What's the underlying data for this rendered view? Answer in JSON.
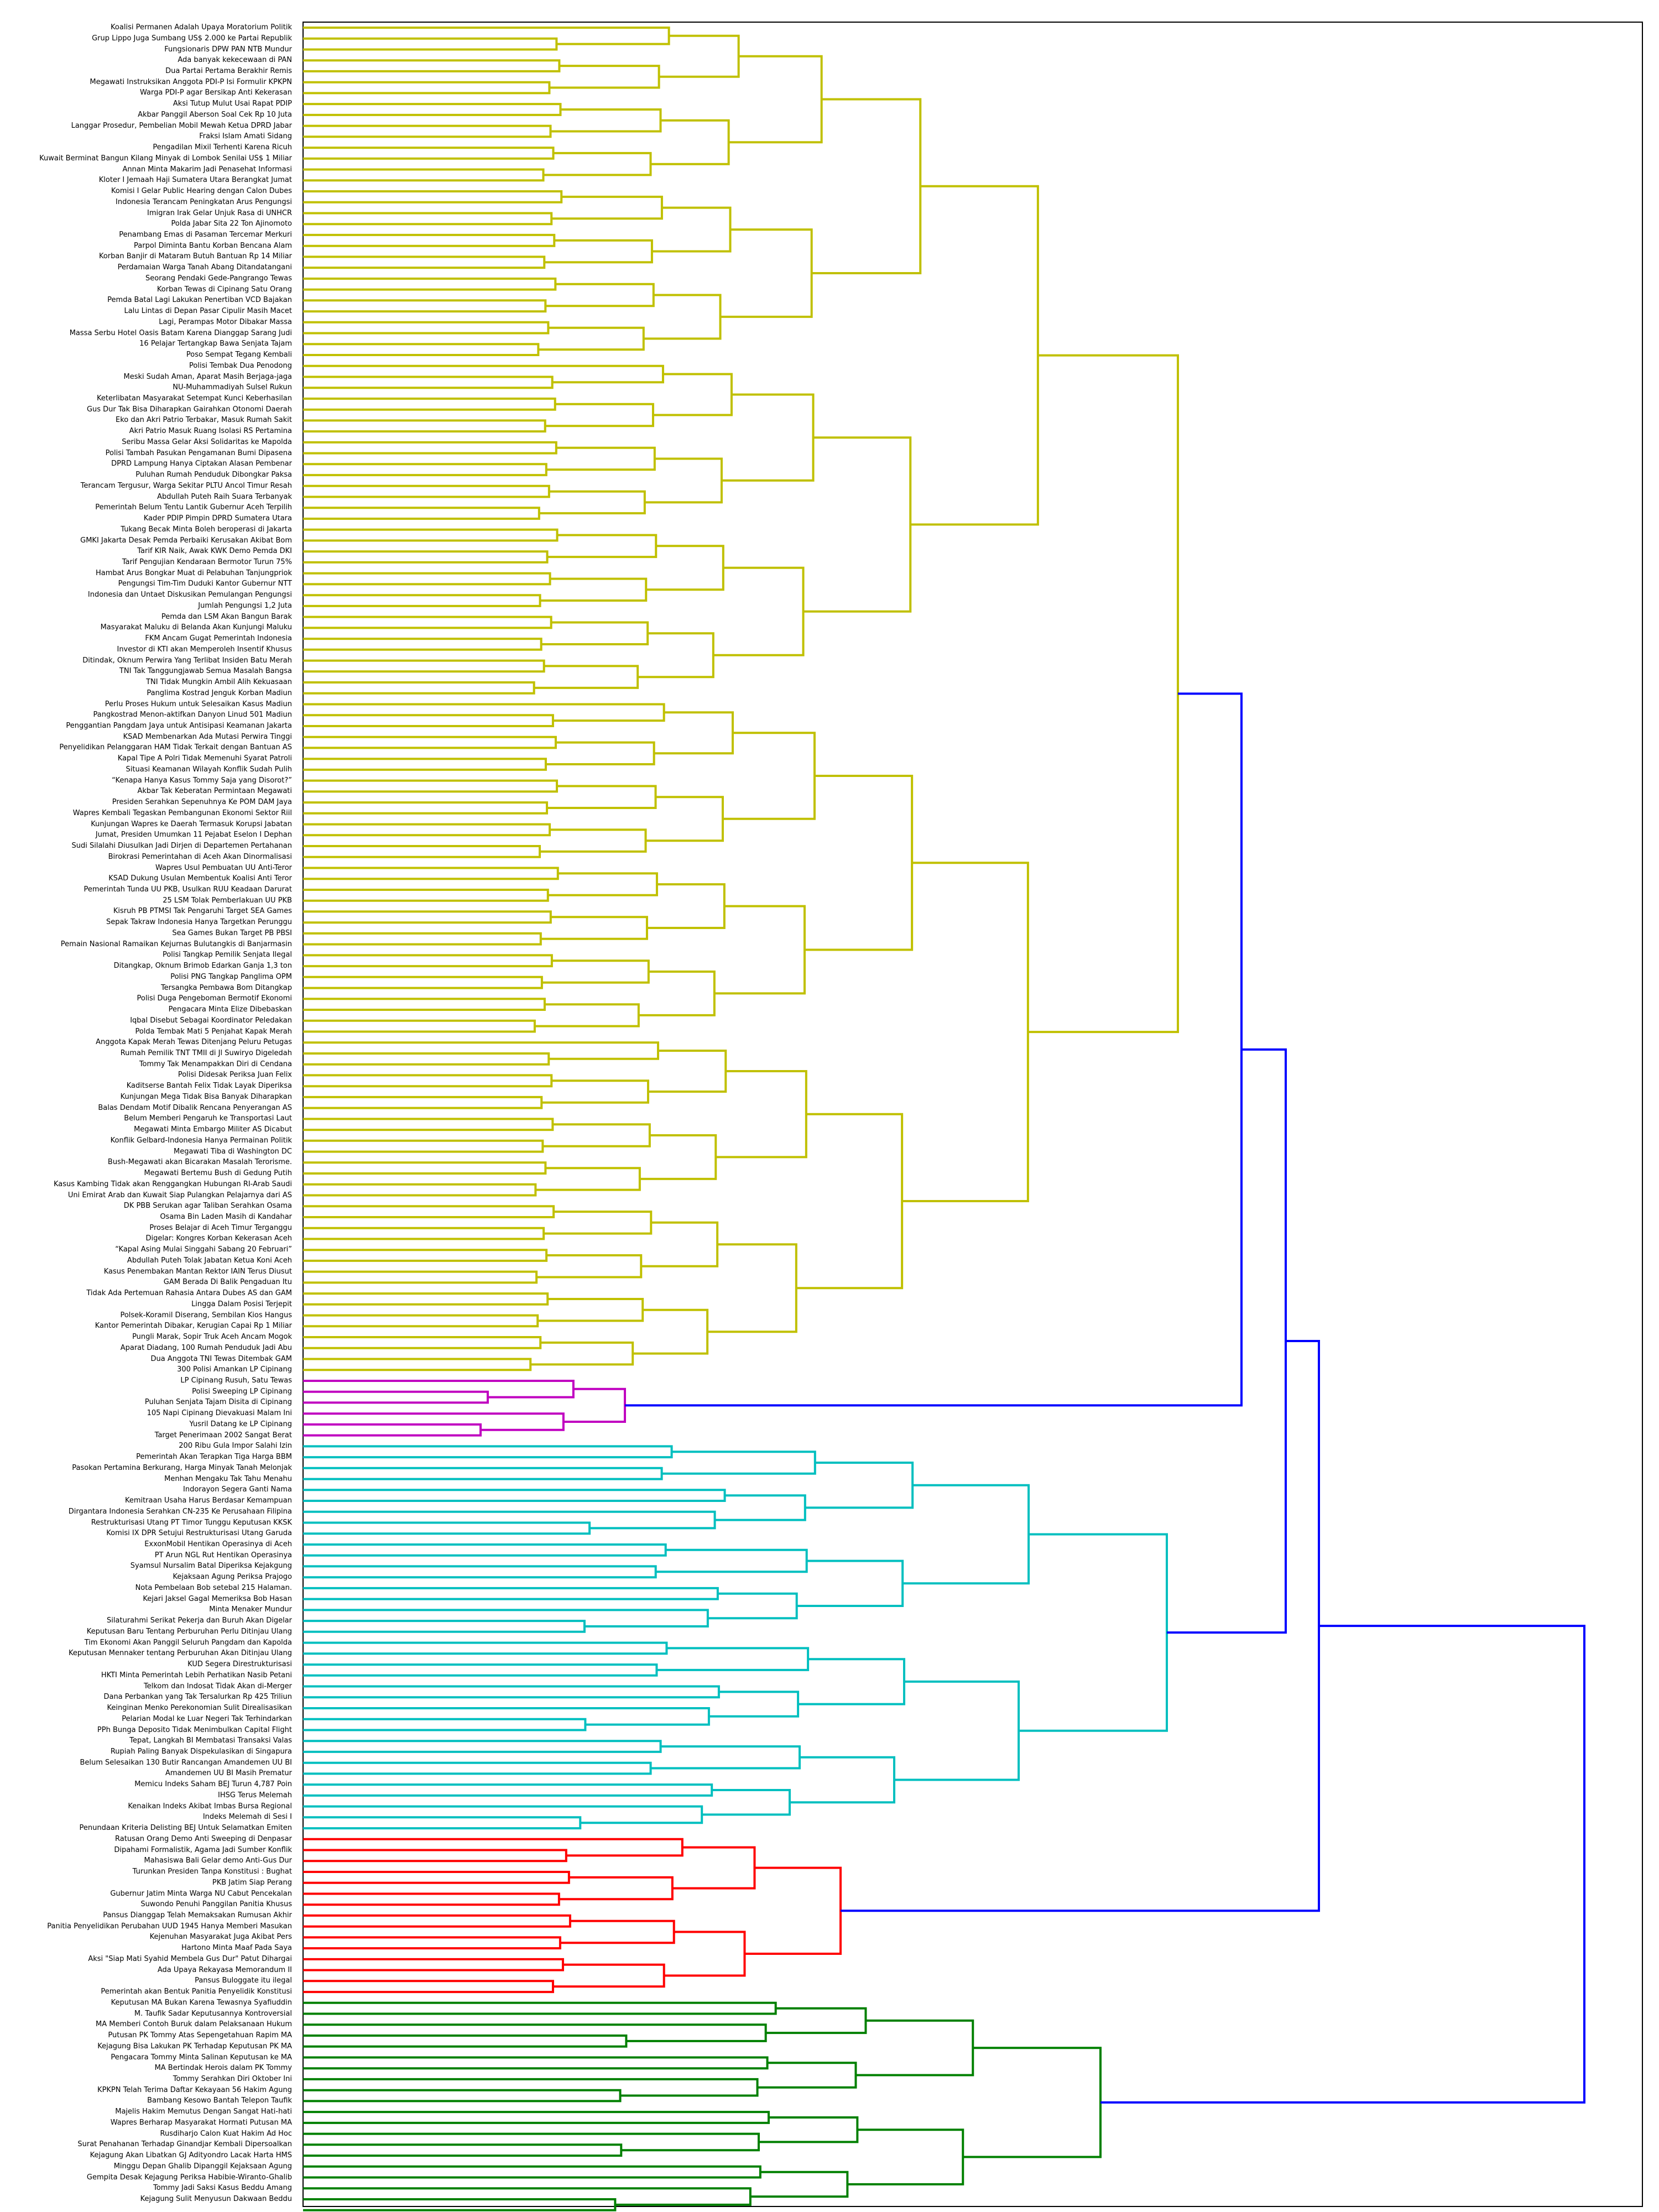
{
  "colors": {
    "olive": "#c0c000",
    "magenta": "#c000c0",
    "cyan": "#00bfbf",
    "red": "#ff0000",
    "green": "#008000",
    "blue": "#0000ff"
  },
  "leaves": [
    "Koalisi Permanen Adalah Upaya Moratorium Politik",
    "Grup Lippo Juga Sumbang US$ 2.000 ke Partai Republik",
    "Fungsionaris DPW PAN NTB Mundur",
    "Ada banyak kekecewaan di PAN",
    "Dua Partai Pertama Berakhir Remis",
    "Megawati Instruksikan Anggota PDI-P Isi Formulir KPKPN",
    "Warga PDI-P agar Bersikap Anti Kekerasan",
    "Aksi Tutup Mulut Usai Rapat PDIP",
    "Akbar Panggil Aberson Soal Cek Rp 10 Juta",
    "Langgar Prosedur, Pembelian Mobil Mewah Ketua DPRD Jabar",
    "Fraksi Islam Amati Sidang",
    "Pengadilan Mixil Terhenti Karena Ricuh",
    "Kuwait Berminat Bangun Kilang Minyak di Lombok Senilai US$ 1 Miliar",
    "Annan Minta Makarim Jadi Penasehat Informasi",
    "Kloter I Jemaah Haji Sumatera Utara Berangkat Jumat",
    "Komisi I Gelar Public Hearing dengan Calon Dubes",
    "Indonesia Terancam Peningkatan Arus Pengungsi",
    "Imigran Irak Gelar Unjuk Rasa di UNHCR",
    "Polda Jabar Sita 22 Ton Ajinomoto",
    "Penambang Emas di Pasaman Tercemar Merkuri",
    "Parpol Diminta Bantu Korban Bencana Alam",
    "Korban Banjir di Mataram Butuh Bantuan Rp 14 Miliar",
    "Perdamaian Warga Tanah Abang Ditandatangani",
    "Seorang Pendaki Gede-Pangrango Tewas",
    "Korban Tewas di Cipinang Satu Orang",
    "Pemda Batal Lagi Lakukan Penertiban VCD Bajakan",
    "Lalu Lintas di Depan Pasar Cipulir Masih Macet",
    "Lagi, Perampas Motor Dibakar Massa",
    "Massa Serbu Hotel Oasis Batam Karena Dianggap Sarang Judi",
    "16 Pelajar Tertangkap Bawa Senjata Tajam",
    "Poso Sempat Tegang Kembali",
    "Polisi Tembak Dua Penodong",
    "Meski Sudah Aman, Aparat Masih Berjaga-jaga",
    "NU-Muhammadiyah Sulsel Rukun",
    "Keterlibatan Masyarakat Setempat Kunci Keberhasilan",
    "Gus Dur Tak Bisa Diharapkan Gairahkan Otonomi Daerah",
    "Eko dan Akri Patrio Terbakar, Masuk Rumah Sakit",
    "Akri Patrio Masuk Ruang Isolasi RS Pertamina",
    "Seribu Massa Gelar Aksi Solidaritas ke Mapolda",
    "Polisi Tambah Pasukan Pengamanan Bumi Dipasena",
    "DPRD Lampung Hanya Ciptakan Alasan Pembenar",
    "Puluhan Rumah Penduduk Dibongkar Paksa",
    "Terancam Tergusur, Warga Sekitar PLTU Ancol Timur Resah",
    "Abdullah Puteh Raih Suara Terbanyak",
    "Pemerintah Belum Tentu Lantik Gubernur Aceh Terpilih",
    "Kader PDIP Pimpin DPRD Sumatera Utara",
    "Tukang Becak Minta Boleh beroperasi di Jakarta",
    "GMKI Jakarta Desak Pemda Perbaiki Kerusakan Akibat Bom",
    "Tarif KIR Naik, Awak KWK Demo Pemda DKI",
    "Tarif Pengujian Kendaraan Bermotor Turun 75%",
    "Hambat Arus Bongkar Muat di Pelabuhan Tanjungpriok",
    "Pengungsi Tim-Tim Duduki Kantor Gubernur NTT",
    "Indonesia dan Untaet Diskusikan Pemulangan Pengungsi",
    "Jumlah Pengungsi 1,2 Juta",
    "Pemda dan LSM Akan Bangun Barak",
    "Masyarakat Maluku di Belanda Akan Kunjungi Maluku",
    "FKM Ancam Gugat Pemerintah Indonesia",
    "Investor di KTI akan Memperoleh Insentif Khusus",
    "Ditindak, Oknum Perwira Yang Terlibat Insiden Batu Merah",
    "TNI Tak Tanggungjawab Semua Masalah Bangsa",
    "TNI Tidak Mungkin Ambil Alih Kekuasaan",
    "Panglima Kostrad Jenguk Korban Madiun",
    "Perlu Proses Hukum untuk Selesaikan Kasus Madiun",
    "Pangkostrad Menon-aktifkan Danyon Linud 501 Madiun",
    "Penggantian Pangdam Jaya untuk Antisipasi Keamanan Jakarta",
    "KSAD Membenarkan Ada Mutasi Perwira Tinggi",
    "Penyelidikan Pelanggaran HAM Tidak Terkait dengan Bantuan AS",
    "Kapal Tipe A Polri Tidak Memenuhi Syarat Patroli",
    "Situasi Keamanan Wilayah Konflik Sudah Pulih",
    "“Kenapa Hanya Kasus Tommy Saja yang Disorot?”",
    "Akbar Tak Keberatan Permintaan Megawati",
    "Presiden Serahkan Sepenuhnya  Ke POM DAM Jaya",
    "Wapres Kembali Tegaskan Pembangunan Ekonomi Sektor Riil",
    "Kunjungan Wapres ke Daerah Termasuk Korupsi Jabatan",
    "Jumat, Presiden Umumkan 11 Pejabat Eselon I Dephan",
    "Sudi Silalahi Diusulkan Jadi Dirjen di Departemen Pertahanan",
    "Birokrasi Pemerintahan di Aceh Akan Dinormalisasi",
    "Wapres Usul Pembuatan UU Anti-Teror",
    "KSAD Dukung Usulan Membentuk Koalisi Anti Teror",
    "Pemerintah Tunda UU PKB, Usulkan RUU Keadaan Darurat",
    "25 LSM Tolak Pemberlakuan UU PKB",
    "Kisruh PB PTMSI Tak Pengaruhi Target SEA Games",
    "Sepak Takraw Indonesia Hanya Targetkan Perunggu",
    "Sea Games Bukan Target PB PBSI",
    "Pemain Nasional Ramaikan Kejurnas Bulutangkis di Banjarmasin",
    "Polisi Tangkap Pemilik Senjata Ilegal",
    "Ditangkap, Oknum Brimob Edarkan Ganja 1,3 ton",
    "Polisi PNG Tangkap Panglima OPM",
    "Tersangka Pembawa Bom Ditangkap",
    "Polisi Duga Pengeboman Bermotif Ekonomi",
    "Pengacara Minta Elize Dibebaskan",
    "Iqbal Disebut Sebagai Koordinator Peledakan",
    "Polda Tembak Mati 5 Penjahat Kapak Merah",
    "Anggota Kapak Merah Tewas Ditenjang Peluru Petugas",
    "Rumah Pemilik TNT TMII di Jl Suwiryo Digeledah",
    "Tommy Tak Menampakkan Diri di Cendana",
    "Polisi Didesak Periksa Juan Felix",
    "Kaditserse Bantah Felix Tidak Layak Diperiksa",
    "Kunjungan Mega Tidak Bisa Banyak Diharapkan",
    "Balas Dendam Motif Dibalik Rencana Penyerangan AS",
    "Belum Memberi Pengaruh ke Transportasi Laut",
    "Megawati Minta Embargo Militer AS Dicabut",
    "Konflik Gelbard-Indonesia Hanya Permainan Politik",
    "Megawati Tiba di Washington DC",
    "Bush-Megawati akan Bicarakan Masalah Terorisme.",
    "Megawati Bertemu Bush di Gedung Putih",
    "Kasus Kambing Tidak akan Renggangkan Hubungan RI-Arab Saudi",
    "Uni Emirat Arab dan Kuwait Siap Pulangkan Pelajarnya dari AS",
    "DK PBB Serukan agar Taliban  Serahkan Osama",
    "Osama Bin Laden Masih di Kandahar",
    "Proses Belajar di Aceh Timur Terganggu",
    "Digelar: Kongres Korban Kekerasan Aceh",
    "“Kapal Asing Mulai Singgahi Sabang 20 Februari”",
    "Abdullah Puteh Tolak Jabatan Ketua Koni Aceh",
    "Kasus Penembakan Mantan Rektor IAIN Terus Diusut",
    "GAM Berada Di Balik Pengaduan Itu",
    "Tidak Ada Pertemuan Rahasia Antara Dubes AS dan GAM",
    "Lingga Dalam Posisi Terjepit",
    "Polsek-Koramil Diserang, Sembilan Kios Hangus",
    "Kantor Pemerintah Dibakar, Kerugian Capai Rp 1 Miliar",
    "Pungli Marak, Sopir Truk Aceh Ancam Mogok",
    "Aparat Diadang, 100 Rumah Penduduk Jadi Abu",
    "Dua Anggota TNI Tewas Ditembak GAM",
    "300 Polisi Amankan LP Cipinang",
    "LP Cipinang Rusuh, Satu Tewas",
    "Polisi  Sweeping   LP Cipinang",
    "Puluhan Senjata Tajam Disita di Cipinang",
    "105 Napi Cipinang Dievakuasi Malam Ini",
    "Yusril Datang ke LP Cipinang",
    "Target Penerimaan 2002 Sangat Berat",
    "200 Ribu Gula Impor Salahi Izin",
    "Pemerintah Akan Terapkan Tiga Harga BBM",
    "Pasokan Pertamina Berkurang, Harga Minyak Tanah Melonjak",
    "Menhan Mengaku  Tak Tahu Menahu",
    "Indorayon Segera Ganti Nama",
    "Kemitraan Usaha Harus Berdasar Kemampuan",
    "Dirgantara Indonesia Serahkan CN-235 Ke Perusahaan Filipina",
    "Restrukturisasi Utang PT Timor Tunggu Keputusan KKSK",
    "Komisi IX DPR Setujui Restrukturisasi Utang Garuda",
    "ExxonMobil Hentikan Operasinya di Aceh",
    "PT Arun NGL Rut Hentikan Operasinya",
    "Syamsul Nursalim Batal Diperiksa Kejakgung",
    "Kejaksaan Agung Periksa Prajogo",
    "Nota Pembelaan Bob setebal  215 Halaman.",
    "Kejari Jaksel Gagal Memeriksa Bob Hasan",
    "Minta Menaker Mundur",
    "Silaturahmi Serikat Pekerja dan Buruh Akan Digelar",
    "Keputusan Baru Tentang Perburuhan Perlu Ditinjau Ulang",
    "Tim Ekonomi Akan Panggil Seluruh Pangdam dan Kapolda",
    "Keputusan Mennaker tentang Perburuhan Akan Ditinjau Ulang",
    "KUD Segera Direstrukturisasi",
    "HKTI Minta Pemerintah Lebih Perhatikan Nasib Petani",
    "Telkom dan Indosat Tidak Akan di-Merger",
    "Dana Perbankan yang Tak Tersalurkan Rp 425 Triliun",
    "Keinginan Menko Perekonomian Sulit Direalisasikan",
    "Pelarian Modal ke Luar Negeri Tak Terhindarkan",
    "PPh Bunga Deposito Tidak Menimbulkan Capital Flight",
    "Tepat, Langkah BI Membatasi Transaksi Valas",
    "Rupiah Paling Banyak Dispekulasikan di Singapura",
    "Belum Selesaikan 130 Butir Rancangan Amandemen UU BI",
    "Amandemen UU BI  Masih Prematur",
    "Memicu Indeks Saham BEJ Turun 4,787 Poin",
    "IHSG Terus Melemah",
    "Kenaikan Indeks Akibat Imbas Bursa Regional",
    "Indeks Melemah di Sesi I",
    "Penundaan Kriteria  Delisting  BEJ Untuk Selamatkan Emiten",
    "Ratusan Orang Demo Anti  Sweeping  di Denpasar",
    "Dipahami Formalistik, Agama Jadi Sumber Konflik",
    "Mahasiswa Bali Gelar demo Anti-Gus Dur",
    "Turunkan Presiden Tanpa Konstitusi : Bughat",
    "PKB Jatim Siap Perang",
    "Gubernur Jatim Minta Warga NU Cabut Pencekalan",
    "Suwondo Penuhi Panggilan Panitia Khusus",
    "Pansus Dianggap Telah Memaksakan Rumusan Akhir",
    "Panitia Penyelidikan Perubahan UUD 1945 Hanya Memberi Masukan",
    "Kejenuhan Masyarakat Juga Akibat Pers",
    "Hartono Minta Maaf Pada Saya",
    "Aksi \"Siap Mati Syahid Membela Gus Dur\" Patut Dihargai",
    "Ada Upaya Rekayasa Memorandum II",
    "Pansus  Bulog­gate  itu ilegal",
    "Pemerintah akan Bentuk Panitia Penyelidik Konstitusi",
    "Keputusan MA Bukan Karena Tewasnya Syafiuddin",
    "M. Taufik Sadar Keputusannya Kontroversial",
    "MA Memberi Contoh Buruk dalam Pelaksanaan Hukum",
    "Putusan PK Tommy Atas Sepengetahuan Rapim MA",
    "Kejagung Bisa Lakukan PK Terhadap Keputusan PK MA",
    "Pengacara Tommy Minta Salinan Keputusan ke MA",
    "MA Bertindak Herois dalam PK Tommy",
    "Tommy Serahkan Diri Oktober Ini",
    "KPKPN Telah Terima Daftar Kekayaan 56 Hakim Agung",
    "Bambang Kesowo Bantah Telepon Taufik",
    "Majelis Hakim Memutus Dengan Sangat Hati-hati",
    "Wapres Berharap Masyarakat Hormati Putusan MA",
    "Rusdiharjo Calon Kuat Hakim Ad Hoc",
    "Surat Penahanan Terhadap Ginandjar Kembali Dipersoalkan",
    "Kejagung Akan  Libatkan GJ Adityondro Lacak Harta HMS",
    "Minggu Depan Ghalib Dipanggil Kejaksaan Agung",
    "Gempita Desak Kejagung Periksa Habibie-Wiranto-Ghalib",
    "Tommy Jadi Saksi Kasus Beddu Amang",
    "Kejagung Sulit Menyusun Dakwaan Beddu"
  ]
}
